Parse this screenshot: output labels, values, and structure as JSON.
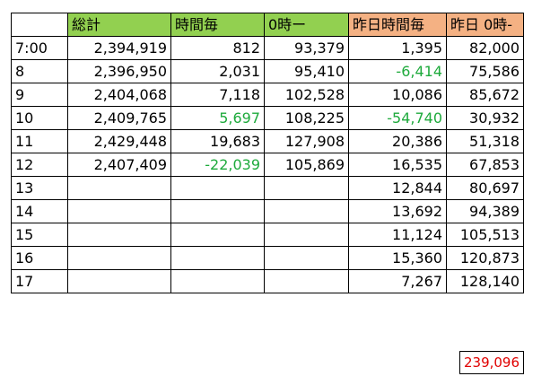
{
  "header": {
    "blank": "",
    "total": "総計",
    "hourly": "時間毎",
    "from_zero": "0時ー",
    "yesterday_hourly": "昨日時間毎",
    "yesterday_from_zero": "昨日 0時-"
  },
  "rows": [
    {
      "label": "7:00",
      "total": "2,394,919",
      "hourly": "812",
      "from_zero": "93,379",
      "yesterday_hourly": "1,395",
      "yesterday_from_zero": "82,000"
    },
    {
      "label": "8",
      "total": "2,396,950",
      "hourly": "2,031",
      "from_zero": "95,410",
      "yesterday_hourly": "-6,414",
      "yesterday_from_zero": "75,586"
    },
    {
      "label": "9",
      "total": "2,404,068",
      "hourly": "7,118",
      "from_zero": "102,528",
      "yesterday_hourly": "10,086",
      "yesterday_from_zero": "85,672"
    },
    {
      "label": "10",
      "total": "2,409,765",
      "hourly": "5,697",
      "from_zero": "108,225",
      "yesterday_hourly": "-54,740",
      "yesterday_from_zero": "30,932"
    },
    {
      "label": "11",
      "total": "2,429,448",
      "hourly": "19,683",
      "from_zero": "127,908",
      "yesterday_hourly": "20,386",
      "yesterday_from_zero": "51,318"
    },
    {
      "label": "12",
      "total": "2,407,409",
      "hourly": "-22,039",
      "from_zero": "105,869",
      "yesterday_hourly": "16,535",
      "yesterday_from_zero": "67,853"
    },
    {
      "label": "13",
      "total": "",
      "hourly": "",
      "from_zero": "",
      "yesterday_hourly": "12,844",
      "yesterday_from_zero": "80,697"
    },
    {
      "label": "14",
      "total": "",
      "hourly": "",
      "from_zero": "",
      "yesterday_hourly": "13,692",
      "yesterday_from_zero": "94,389"
    },
    {
      "label": "15",
      "total": "",
      "hourly": "",
      "from_zero": "",
      "yesterday_hourly": "11,124",
      "yesterday_from_zero": "105,513"
    },
    {
      "label": "16",
      "total": "",
      "hourly": "",
      "from_zero": "",
      "yesterday_hourly": "15,360",
      "yesterday_from_zero": "120,873"
    },
    {
      "label": "17",
      "total": "",
      "hourly": "",
      "from_zero": "",
      "yesterday_hourly": "7,267",
      "yesterday_from_zero": "128,140"
    }
  ],
  "highlighted_cells": [
    {
      "row": 1,
      "column": "yesterday_hourly"
    },
    {
      "row": 3,
      "column": "hourly"
    },
    {
      "row": 3,
      "column": "yesterday_hourly"
    },
    {
      "row": 5,
      "column": "hourly"
    }
  ],
  "total_box": "239,096",
  "colors": {
    "header_green": "#92d050",
    "header_orange": "#f4b183",
    "highlight_text": "#1eaa3c",
    "total_text": "#e00000"
  }
}
